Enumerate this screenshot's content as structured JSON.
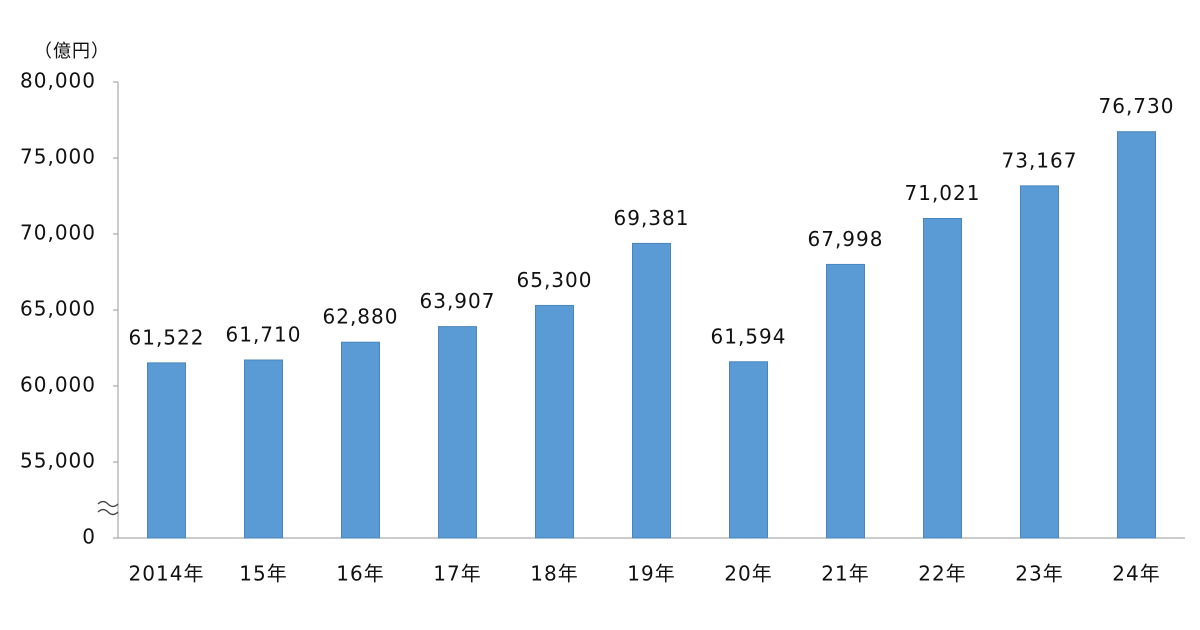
{
  "chart_data": {
    "type": "bar",
    "y_axis_label": "（億円）",
    "categories": [
      "2014年",
      "15年",
      "16年",
      "17年",
      "18年",
      "19年",
      "20年",
      "21年",
      "22年",
      "23年",
      "24年"
    ],
    "values": [
      61522,
      61710,
      62880,
      63907,
      65300,
      69381,
      61594,
      67998,
      71021,
      73167,
      76730
    ],
    "value_labels": [
      "61,522",
      "61,710",
      "62,880",
      "63,907",
      "65,300",
      "69,381",
      "61,594",
      "67,998",
      "71,021",
      "73,167",
      "76,730"
    ],
    "color": "#5b9bd5",
    "ylim": [
      0,
      80000
    ],
    "axis_break": {
      "from": 0,
      "to": 50000
    },
    "yticks": [
      0,
      {
        "value": 55000,
        "label": "55,000"
      },
      {
        "value": 60000,
        "label": "60,000"
      },
      {
        "value": 65000,
        "label": "65,000"
      },
      {
        "value": 70000,
        "label": "70,000"
      },
      {
        "value": 75000,
        "label": "75,000"
      },
      {
        "value": 80000,
        "label": "80,000"
      }
    ],
    "grid": false
  }
}
